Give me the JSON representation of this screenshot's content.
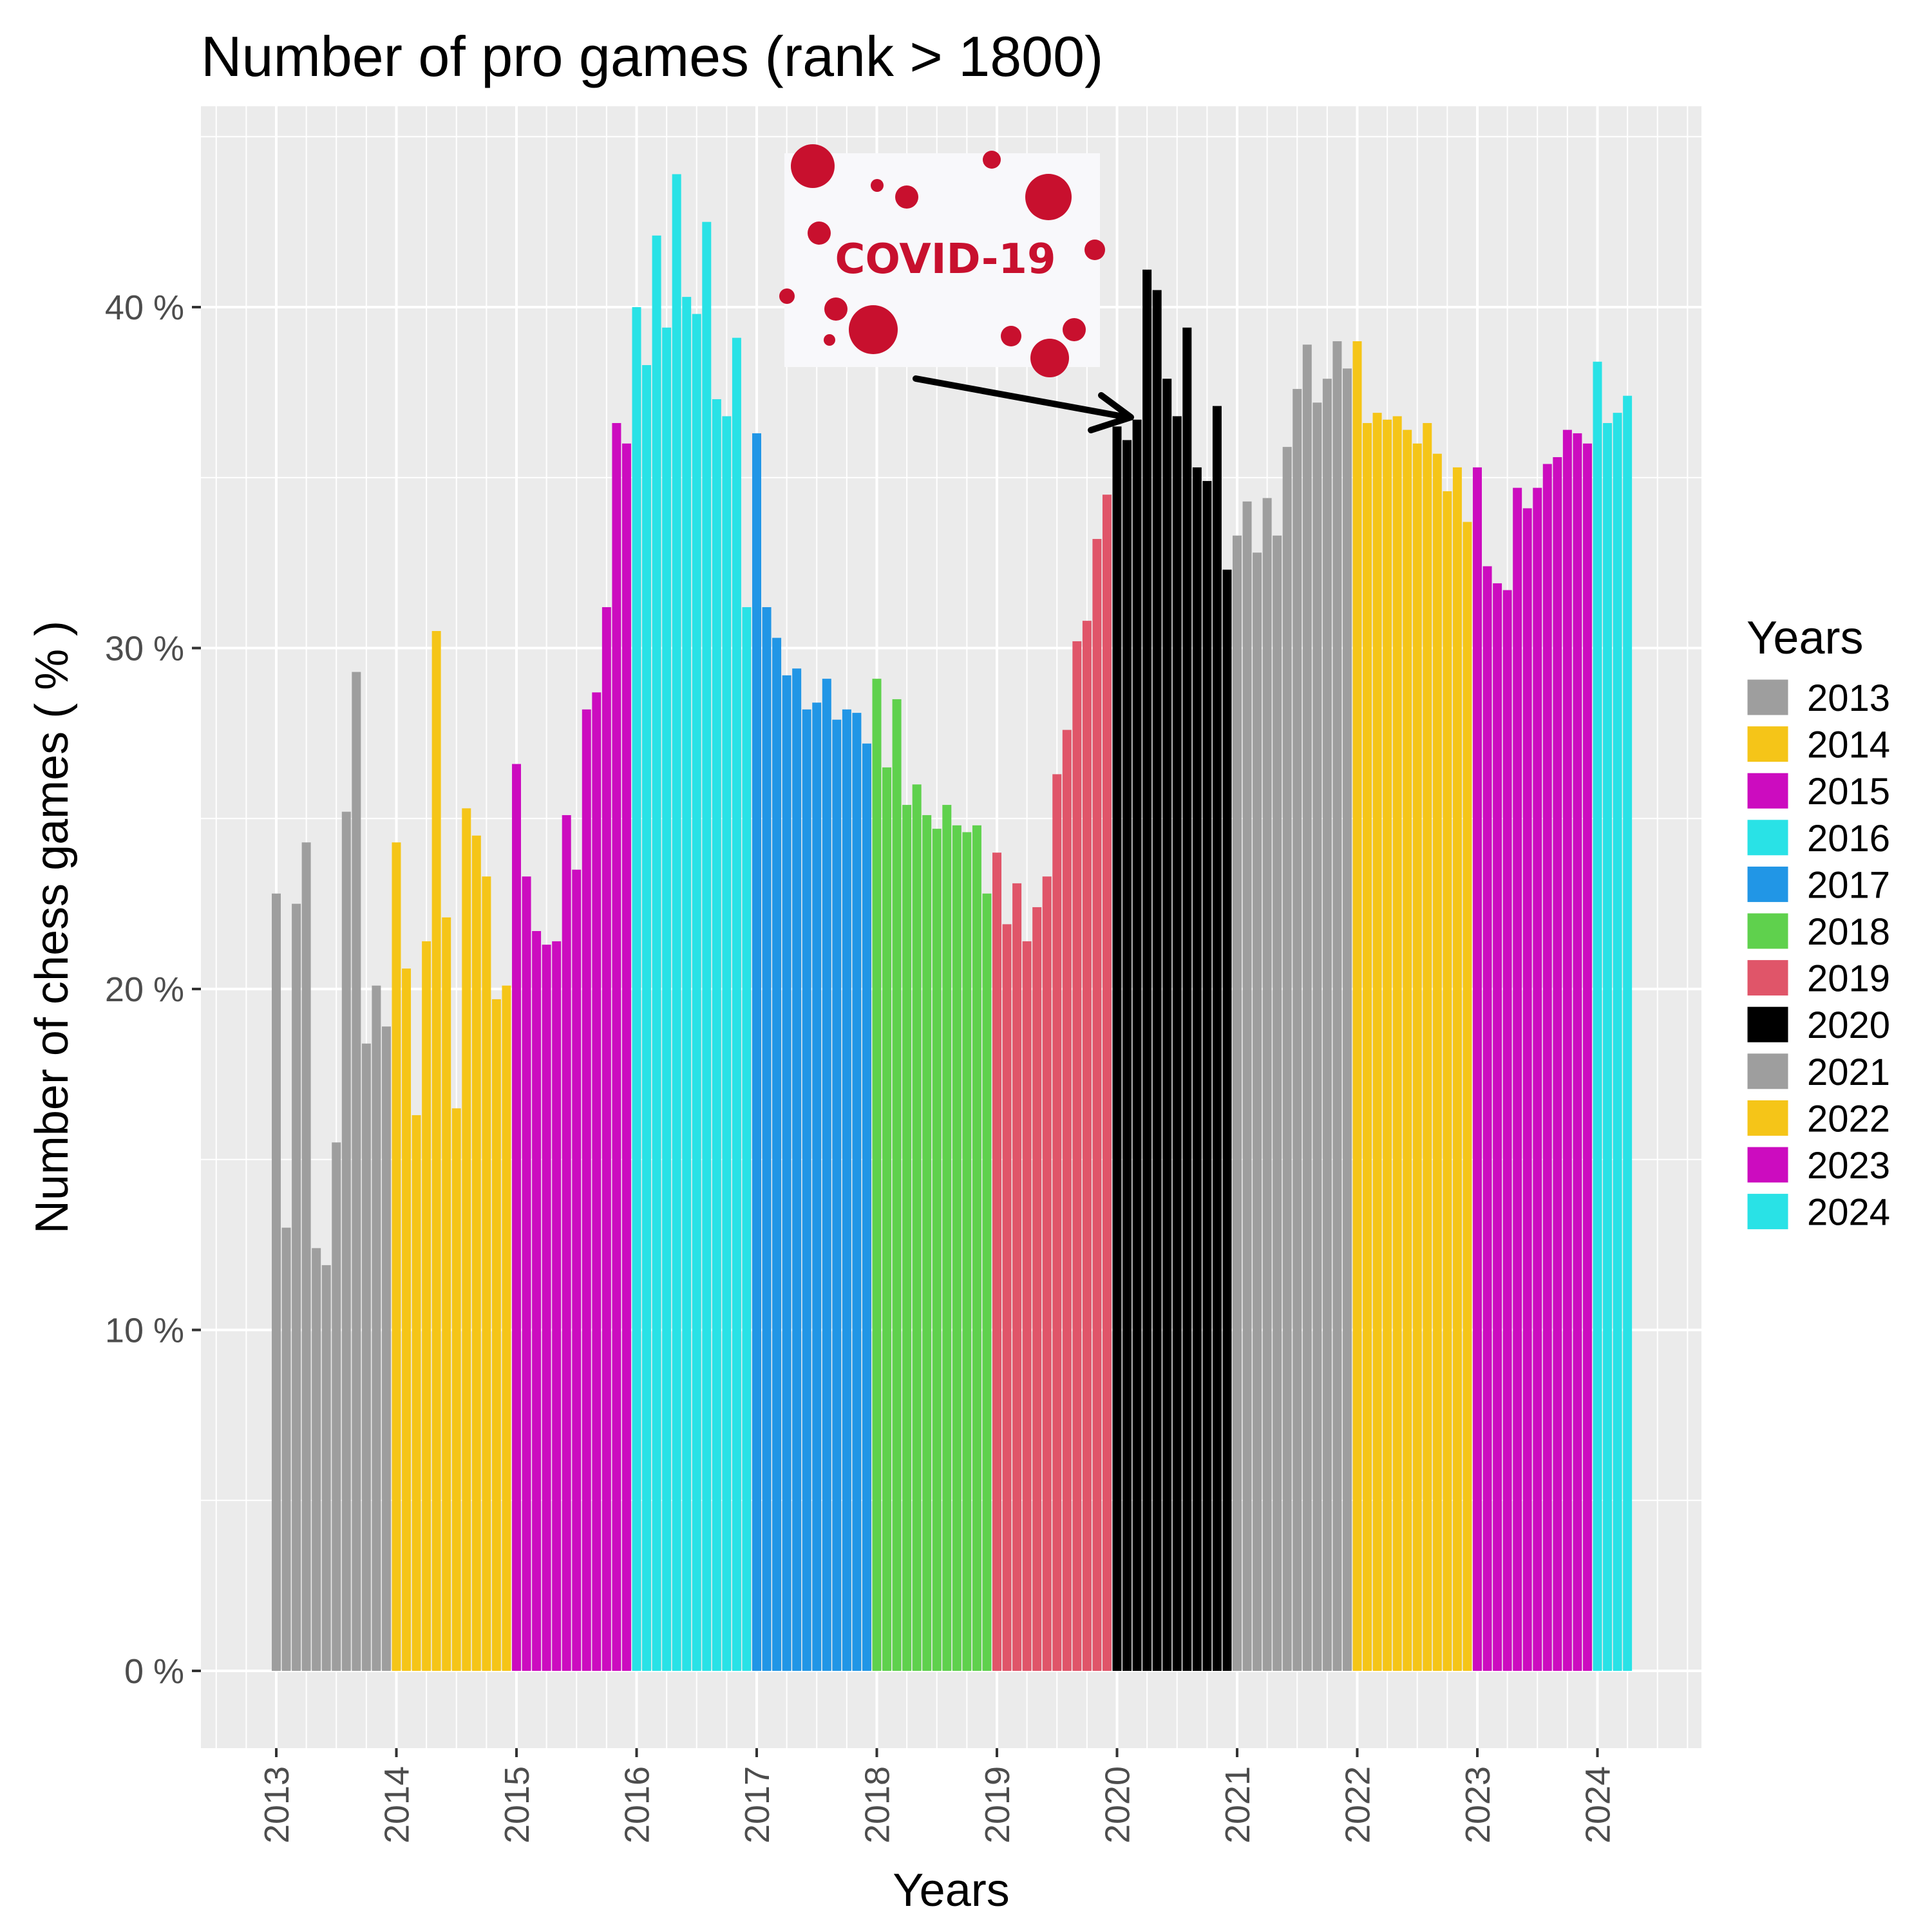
{
  "chart_data": {
    "type": "bar",
    "title": "Number of pro games (rank > 1800)",
    "xlabel": "Years",
    "ylabel": "Number of chess games ( % )",
    "ylim": [
      -2,
      45
    ],
    "y_ticks": [
      "0 %",
      "10 %",
      "20 %",
      "30 %",
      "40 %"
    ],
    "x_ticks": [
      "2013",
      "2014",
      "2015",
      "2016",
      "2017",
      "2018",
      "2019",
      "2020",
      "2021",
      "2022",
      "2023",
      "2024"
    ],
    "grid": true,
    "legend": {
      "title": "Years",
      "position": "right"
    },
    "annotation": {
      "text": "COVID-19",
      "points_to": "2020-03"
    },
    "series": [
      {
        "name": "2013",
        "color": "#9e9e9e",
        "values": [
          22.8,
          13.0,
          22.5,
          24.3,
          12.4,
          11.9,
          15.5,
          25.2,
          29.3,
          18.4,
          20.1,
          18.9
        ]
      },
      {
        "name": "2014",
        "color": "#f5c518",
        "values": [
          24.3,
          20.6,
          16.3,
          21.4,
          30.5,
          22.1,
          16.5,
          25.3,
          24.5,
          23.3,
          19.7,
          20.1
        ]
      },
      {
        "name": "2015",
        "color": "#cc0cbf",
        "values": [
          26.6,
          23.3,
          21.7,
          21.3,
          21.4,
          25.1,
          23.5,
          28.2,
          28.7,
          31.2,
          36.6,
          36.0
        ]
      },
      {
        "name": "2016",
        "color": "#29e2e6",
        "values": [
          40.0,
          38.3,
          42.1,
          39.4,
          43.9,
          40.3,
          39.8,
          42.5,
          37.3,
          36.8,
          39.1,
          31.2
        ]
      },
      {
        "name": "2017",
        "color": "#2196e6",
        "values": [
          36.3,
          31.2,
          30.3,
          29.2,
          29.4,
          28.2,
          28.4,
          29.1,
          27.9,
          28.2,
          28.1,
          27.2
        ]
      },
      {
        "name": "2018",
        "color": "#5fd14d",
        "values": [
          29.1,
          26.5,
          28.5,
          25.4,
          26.0,
          25.1,
          24.7,
          25.4,
          24.8,
          24.6,
          24.8,
          22.8
        ]
      },
      {
        "name": "2019",
        "color": "#e05569",
        "values": [
          24.0,
          21.9,
          23.1,
          21.4,
          22.4,
          23.3,
          26.3,
          27.6,
          30.2,
          30.8,
          33.2,
          34.5
        ]
      },
      {
        "name": "2020",
        "color": "#000000",
        "values": [
          36.5,
          36.1,
          36.7,
          41.1,
          40.5,
          37.9,
          36.8,
          39.4,
          35.3,
          34.9,
          37.1,
          32.3
        ]
      },
      {
        "name": "2021",
        "color": "#9e9e9e",
        "values": [
          33.3,
          34.3,
          32.8,
          34.4,
          33.3,
          35.9,
          37.6,
          38.9,
          37.2,
          37.9,
          39.0,
          38.2
        ]
      },
      {
        "name": "2022",
        "color": "#f5c518",
        "values": [
          39.0,
          36.6,
          36.9,
          36.7,
          36.8,
          36.4,
          36.0,
          36.6,
          35.7,
          34.6,
          35.3,
          33.7
        ]
      },
      {
        "name": "2023",
        "color": "#cc0cbf",
        "values": [
          35.3,
          32.4,
          31.9,
          31.7,
          34.7,
          34.1,
          34.7,
          35.4,
          35.6,
          36.4,
          36.3,
          36.0
        ]
      },
      {
        "name": "2024",
        "color": "#29e2e6",
        "values": [
          38.4,
          36.6,
          36.9,
          37.4
        ]
      }
    ]
  }
}
